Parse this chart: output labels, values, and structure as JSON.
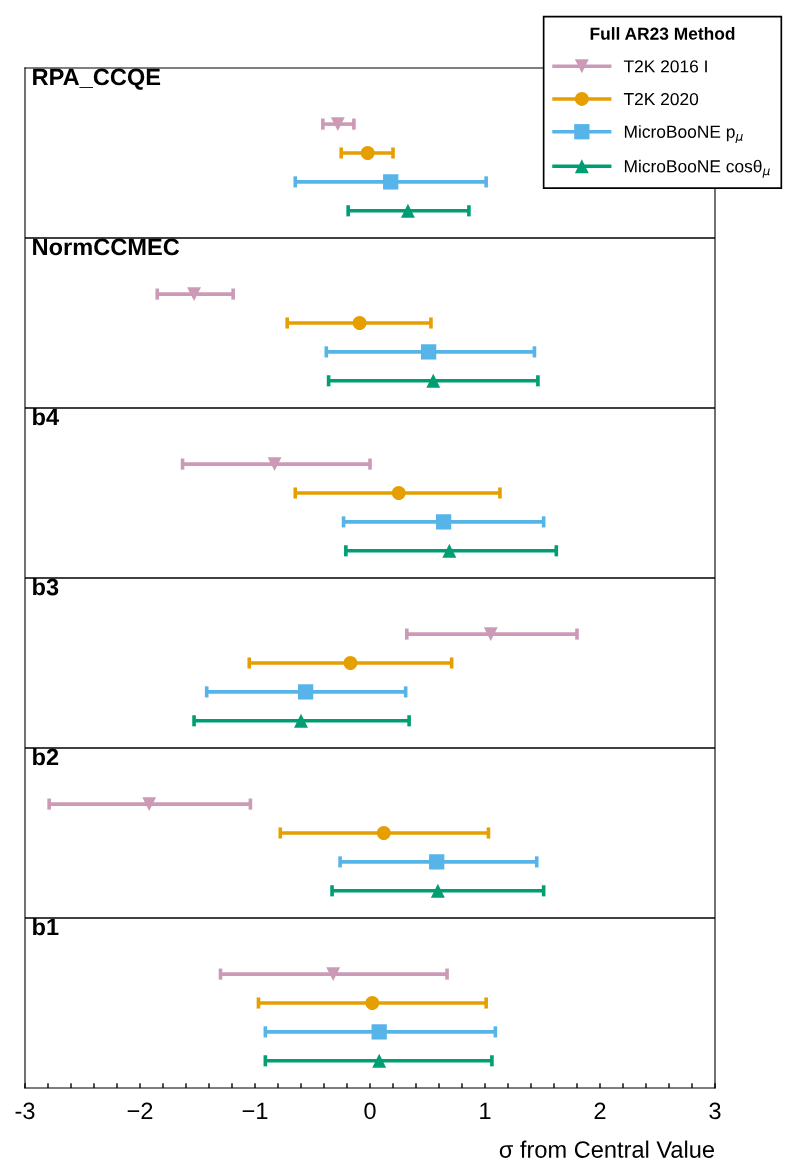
{
  "chart_data": {
    "type": "scatter",
    "orientation": "horizontal",
    "categories": [
      "RPA_CCQE",
      "NormCCMEC",
      "b4",
      "b3",
      "b2",
      "b1"
    ],
    "xlim": [
      -3,
      3
    ],
    "xlabel": "σ from Central Value",
    "legend": "top right",
    "legend_title": "Full AR23 Method",
    "grid": false,
    "xticks": [
      -3,
      {
        "value": -2.8,
        "label": null
      },
      {
        "value": -2.6,
        "label": null
      },
      {
        "value": -2.4,
        "label": null
      },
      {
        "value": -2.2,
        "label": null
      },
      {
        "value": -2,
        "label": "−2"
      },
      {
        "value": -1.8,
        "label": null
      },
      {
        "value": -1.6,
        "label": null
      },
      {
        "value": -1.4,
        "label": null
      },
      {
        "value": -1.2,
        "label": null
      },
      {
        "value": -1,
        "label": "−1"
      },
      {
        "value": -0.8,
        "label": null
      },
      {
        "value": -0.6,
        "label": null
      },
      {
        "value": -0.4,
        "label": null
      },
      {
        "value": -0.2,
        "label": null
      },
      0,
      {
        "value": 0.2,
        "label": null
      },
      {
        "value": 0.4,
        "label": null
      },
      {
        "value": 0.6,
        "label": null
      },
      {
        "value": 0.8,
        "label": null
      },
      1,
      {
        "value": 1.2,
        "label": null
      },
      {
        "value": 1.4,
        "label": null
      },
      {
        "value": 1.6,
        "label": null
      },
      {
        "value": 1.8,
        "label": null
      },
      2,
      {
        "value": 2.2,
        "label": null
      },
      {
        "value": 2.4,
        "label": null
      },
      {
        "value": 2.6,
        "label": null
      },
      {
        "value": 2.8,
        "label": null
      },
      3
    ],
    "series": [
      {
        "name": "T2K 2016 I",
        "color": "#cc9ab6",
        "marker": "triangle_down",
        "values": [
          -0.28,
          -1.53,
          -0.83,
          1.05,
          -1.92,
          -0.32
        ],
        "errors": [
          [
            -0.41,
            -0.14
          ],
          [
            -1.85,
            -1.19
          ],
          [
            -1.63,
            0.0
          ],
          [
            0.32,
            1.8
          ],
          [
            -2.79,
            -1.04
          ],
          [
            -1.3,
            0.67
          ]
        ]
      },
      {
        "name": "T2K 2020",
        "color": "#e69f00",
        "marker": "circle",
        "values": [
          -0.02,
          -0.09,
          0.25,
          -0.17,
          0.12,
          0.02
        ],
        "errors": [
          [
            -0.25,
            0.2
          ],
          [
            -0.72,
            0.53
          ],
          [
            -0.65,
            1.13
          ],
          [
            -1.05,
            0.71
          ],
          [
            -0.78,
            1.03
          ],
          [
            -0.97,
            1.01
          ]
        ]
      },
      {
        "name": "MicroBooNE p$_{μ}$",
        "color": "#56b4e9",
        "marker": "square",
        "values": [
          0.18,
          0.51,
          0.64,
          -0.56,
          0.58,
          0.08
        ],
        "errors": [
          [
            -0.65,
            1.01
          ],
          [
            -0.38,
            1.43
          ],
          [
            -0.23,
            1.51
          ],
          [
            -1.42,
            0.31
          ],
          [
            -0.26,
            1.45
          ],
          [
            -0.91,
            1.09
          ]
        ]
      },
      {
        "name": "MicroBooNE cosθ$_{μ}$",
        "color": "#009e73",
        "marker": "triangle",
        "values": [
          0.33,
          0.55,
          0.69,
          -0.6,
          0.59,
          0.08
        ],
        "errors": [
          [
            -0.19,
            0.86
          ],
          [
            -0.36,
            1.46
          ],
          [
            -0.21,
            1.62
          ],
          [
            -1.53,
            0.34
          ],
          [
            -0.33,
            1.51
          ],
          [
            -0.91,
            1.06
          ]
        ]
      }
    ]
  }
}
